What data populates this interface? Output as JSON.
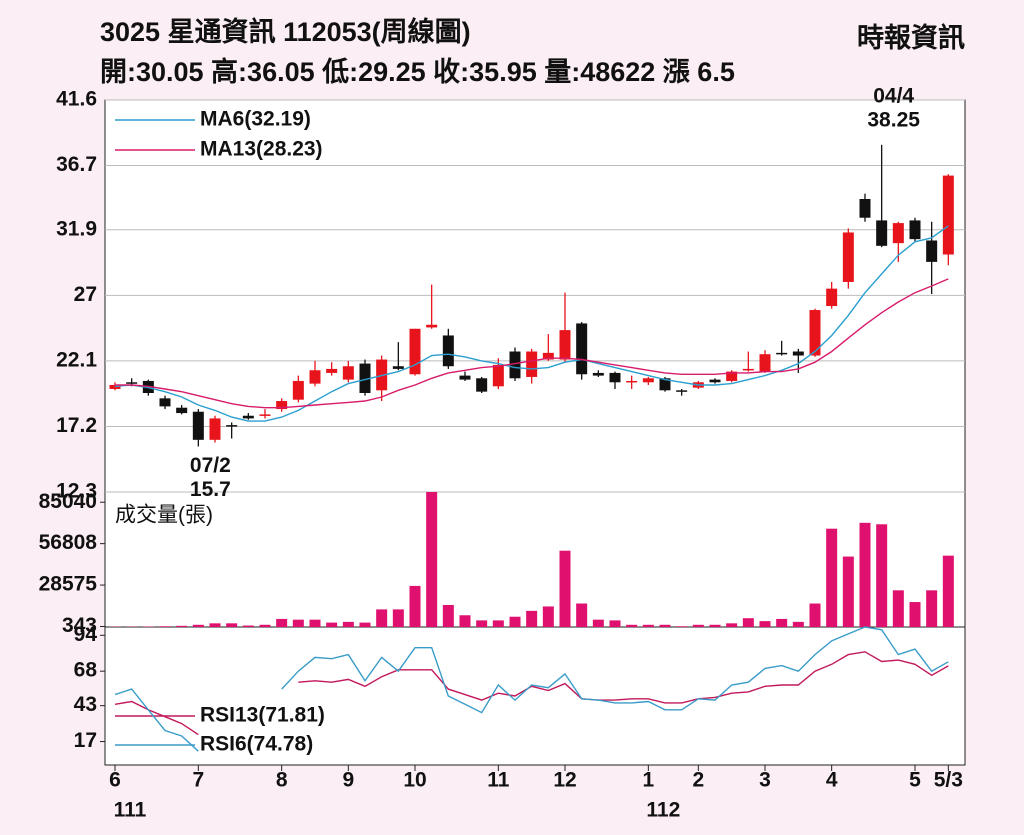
{
  "header": {
    "title": "3025  星通資訊 112053(周線圖)",
    "source": "時報資訊",
    "summary": "開:30.05 高:36.05 低:29.25 收:35.95 量:48622 漲 6.5"
  },
  "chart_data": [
    {
      "type": "candlestick",
      "open": [
        20.0,
        20.5,
        20.6,
        19.3,
        18.6,
        18.3,
        16.2,
        17.3,
        18.0,
        18.0,
        18.5,
        19.2,
        20.4,
        21.2,
        20.7,
        21.9,
        19.9,
        21.7,
        21.1,
        24.6,
        24.0,
        21.0,
        20.8,
        20.2,
        22.8,
        20.9,
        22.2,
        22.2,
        24.9,
        21.2,
        21.2,
        20.6,
        20.5,
        20.8,
        19.9,
        20.1,
        20.7,
        20.6,
        21.4,
        21.3,
        22.7,
        22.8,
        22.5,
        26.2,
        28.0,
        34.2,
        32.6,
        30.9,
        32.6,
        31.1,
        30.05
      ],
      "high": [
        20.5,
        20.8,
        20.7,
        19.5,
        18.8,
        18.5,
        18.0,
        17.5,
        18.2,
        18.5,
        19.3,
        21.0,
        22.1,
        22.0,
        22.1,
        22.2,
        22.5,
        23.5,
        24.5,
        27.8,
        24.5,
        21.3,
        20.9,
        22.3,
        23.1,
        23.0,
        24.1,
        27.2,
        25.0,
        21.4,
        21.3,
        21.0,
        20.9,
        20.9,
        20.0,
        20.6,
        20.8,
        21.4,
        22.8,
        22.9,
        23.6,
        23.0,
        26.0,
        28.0,
        32.0,
        34.6,
        38.25,
        32.5,
        32.8,
        32.5,
        36.05
      ],
      "low": [
        19.9,
        20.2,
        19.5,
        18.5,
        18.1,
        15.7,
        16.0,
        16.3,
        17.7,
        17.8,
        18.3,
        19.0,
        20.2,
        21.0,
        20.5,
        19.5,
        19.1,
        21.4,
        21.0,
        24.5,
        21.5,
        20.6,
        19.7,
        20.0,
        20.6,
        20.4,
        22.1,
        22.0,
        20.7,
        20.9,
        20.0,
        20.0,
        20.3,
        19.8,
        19.5,
        20.0,
        20.4,
        20.5,
        21.3,
        21.2,
        22.5,
        21.2,
        22.4,
        26.0,
        27.5,
        32.5,
        30.6,
        29.5,
        31.0,
        27.1,
        29.25
      ],
      "close": [
        20.3,
        20.4,
        19.7,
        18.7,
        18.2,
        16.2,
        17.8,
        17.2,
        17.8,
        18.1,
        19.1,
        20.6,
        21.4,
        21.5,
        21.7,
        19.7,
        22.2,
        21.5,
        24.5,
        24.8,
        21.7,
        20.7,
        19.8,
        21.8,
        20.8,
        22.8,
        22.7,
        24.4,
        21.1,
        21.0,
        20.5,
        20.6,
        20.8,
        19.9,
        19.8,
        20.5,
        20.5,
        21.3,
        21.5,
        22.6,
        22.6,
        22.5,
        25.9,
        27.5,
        31.7,
        32.8,
        30.7,
        32.4,
        31.2,
        29.5,
        35.95
      ],
      "up_color": "#e8141c",
      "down_color": "#111111",
      "series": [
        {
          "name": "MA6(32.19)",
          "color": "#2a9fd0",
          "values": [
            20.2,
            20.3,
            20.1,
            19.8,
            19.4,
            18.8,
            18.4,
            17.9,
            17.6,
            17.6,
            17.9,
            18.4,
            19.1,
            19.8,
            20.4,
            20.7,
            21.0,
            21.3,
            21.8,
            22.5,
            22.6,
            22.4,
            22.1,
            21.9,
            21.6,
            21.5,
            21.6,
            22.0,
            22.2,
            21.9,
            21.6,
            21.3,
            21.0,
            20.7,
            20.5,
            20.3,
            20.3,
            20.4,
            20.7,
            21.0,
            21.4,
            21.9,
            22.8,
            24.0,
            25.5,
            27.2,
            28.6,
            30.0,
            31.0,
            31.3,
            32.19
          ]
        },
        {
          "name": "MA13(28.23)",
          "color": "#d81b6a",
          "values": [
            20.3,
            20.3,
            20.2,
            20.0,
            19.8,
            19.5,
            19.2,
            18.9,
            18.7,
            18.6,
            18.6,
            18.7,
            18.8,
            18.9,
            19.0,
            19.1,
            19.4,
            19.9,
            20.3,
            20.8,
            21.2,
            21.4,
            21.6,
            21.7,
            21.9,
            22.1,
            22.3,
            22.3,
            22.2,
            22.0,
            21.8,
            21.6,
            21.4,
            21.2,
            21.1,
            21.1,
            21.1,
            21.2,
            21.2,
            21.3,
            21.3,
            21.5,
            22.0,
            22.8,
            23.8,
            24.8,
            25.7,
            26.5,
            27.2,
            27.7,
            28.23
          ]
        }
      ],
      "annotations": [
        {
          "x": 5,
          "label": "07/2",
          "value": 15.7
        },
        {
          "x": 46,
          "label": "04/4",
          "value": 38.25
        }
      ],
      "xlim": [
        -0.6,
        51.0
      ],
      "ylim": [
        12.3,
        41.6
      ],
      "yticks": [
        12.3,
        17.2,
        22.1,
        27.0,
        31.9,
        36.7,
        41.6
      ],
      "grid": true
    },
    {
      "type": "bar",
      "title": "成交量(張)",
      "color": "#e0106e",
      "values": [
        200,
        200,
        300,
        500,
        800,
        1500,
        2500,
        2500,
        1000,
        1500,
        5500,
        5000,
        5000,
        3000,
        3500,
        3000,
        12000,
        12000,
        28000,
        92000,
        15000,
        8000,
        4500,
        4500,
        7000,
        11000,
        14000,
        52000,
        16000,
        5000,
        4500,
        1500,
        1500,
        1500,
        500,
        1500,
        1500,
        2500,
        6000,
        4000,
        5500,
        3500,
        16000,
        67000,
        48000,
        71000,
        70000,
        25000,
        17000,
        25000,
        48622
      ],
      "xlim": [
        -0.6,
        51.0
      ],
      "ylim": [
        0,
        92000
      ],
      "yticks": [
        343,
        28575,
        56808,
        85040
      ]
    },
    {
      "type": "line",
      "series": [
        {
          "name": "RSI13(71.81)",
          "color": "#c2185b",
          "values": [
            44,
            46,
            40,
            35,
            30,
            22,
            null,
            null,
            null,
            null,
            null,
            60,
            61,
            60,
            62,
            57,
            64,
            69,
            69,
            69,
            55,
            51,
            47,
            52,
            50,
            57,
            54,
            59,
            48,
            47,
            47,
            48,
            48,
            45,
            45,
            48,
            49,
            52,
            53,
            57,
            58,
            58,
            68,
            73,
            80,
            82,
            75,
            76,
            73,
            65,
            71.81
          ]
        },
        {
          "name": "RSI6(74.78)",
          "color": "#3a9cc8",
          "values": [
            51,
            55,
            40,
            25,
            21,
            10,
            null,
            null,
            null,
            null,
            55,
            68,
            78,
            77,
            80,
            61,
            78,
            68,
            85,
            85,
            50,
            44,
            38,
            58,
            47,
            58,
            56,
            66,
            48,
            47,
            45,
            45,
            46,
            40,
            40,
            48,
            47,
            58,
            60,
            70,
            72,
            68,
            80,
            90,
            95,
            100,
            98,
            80,
            84,
            68,
            74.78
          ]
        }
      ],
      "xlim": [
        -0.6,
        51.0
      ],
      "ylim": [
        0,
        100
      ],
      "yticks": [
        17,
        43,
        68,
        94
      ],
      "xticks": [
        {
          "value": 0,
          "label": "6"
        },
        {
          "value": 5,
          "label": "7"
        },
        {
          "value": 10,
          "label": "8"
        },
        {
          "value": 14,
          "label": "9"
        },
        {
          "value": 18,
          "label": "10"
        },
        {
          "value": 23,
          "label": "11"
        },
        {
          "value": 27,
          "label": "12"
        },
        {
          "value": 32,
          "label": "1"
        },
        {
          "value": 35,
          "label": "2"
        },
        {
          "value": 39,
          "label": "3"
        },
        {
          "value": 43,
          "label": "4"
        },
        {
          "value": 48,
          "label": "5"
        },
        {
          "value": 50,
          "label": "5/3"
        }
      ],
      "year_ticks": [
        {
          "value": 0,
          "label": "111"
        },
        {
          "value": 32,
          "label": "112"
        }
      ]
    }
  ]
}
